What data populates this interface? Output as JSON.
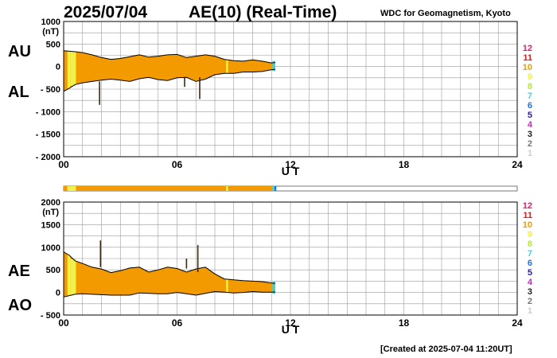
{
  "header": {
    "date": "2025/07/04",
    "title": "AE(10) (Real-Time)",
    "credit": "WDC for Geomagnetism, Kyoto",
    "created": "[Created at 2025-07-04 11:20UT]"
  },
  "legend": [
    {
      "label": "12",
      "color": "#e8196a"
    },
    {
      "label": "11",
      "color": "#e01c1c"
    },
    {
      "label": "10",
      "color": "#f39a00"
    },
    {
      "label": "9",
      "color": "#f1f148"
    },
    {
      "label": "8",
      "color": "#b8e830"
    },
    {
      "label": "7",
      "color": "#34d6e6"
    },
    {
      "label": "6",
      "color": "#1f73e0"
    },
    {
      "label": "5",
      "color": "#2d1aa8"
    },
    {
      "label": "4",
      "color": "#cc22cc"
    },
    {
      "label": "3",
      "color": "#222222"
    },
    {
      "label": "2",
      "color": "#777777"
    },
    {
      "label": "1",
      "color": "#cfcfcf"
    }
  ],
  "chart_data": [
    {
      "type": "area",
      "name": "AU/AL",
      "unit": "(nT)",
      "labels": [
        "AU",
        "AL"
      ],
      "xlabel": "U T",
      "xticks": [
        "00",
        "06",
        "12",
        "18",
        "24"
      ],
      "xlim": [
        0,
        24
      ],
      "ylim": [
        -2000,
        1000
      ],
      "yticks": [
        -2000,
        -1500,
        -1000,
        -500,
        0,
        500,
        1000
      ],
      "ytick_labels": [
        "- 2000",
        "- 1500",
        "- 1000",
        "- 500",
        "0",
        "500",
        "1000"
      ],
      "grid": true,
      "series": [
        {
          "key": "AU",
          "x": [
            0,
            0.3,
            0.6,
            1,
            1.5,
            2,
            2.5,
            3,
            3.5,
            4,
            4.5,
            5,
            5.5,
            6,
            6.5,
            7,
            7.5,
            8,
            8.5,
            9,
            9.5,
            10,
            10.5,
            11,
            11.2
          ],
          "y": [
            350,
            340,
            330,
            310,
            260,
            200,
            160,
            180,
            220,
            260,
            210,
            230,
            260,
            270,
            200,
            230,
            260,
            230,
            160,
            130,
            120,
            150,
            120,
            80,
            90
          ]
        },
        {
          "key": "AL",
          "x": [
            0,
            0.3,
            0.6,
            1,
            1.5,
            2,
            2.5,
            3,
            3.5,
            4,
            4.5,
            5,
            5.5,
            6,
            6.5,
            7,
            7.5,
            8,
            8.5,
            9,
            9.5,
            10,
            10.5,
            11,
            11.2
          ],
          "y": [
            -550,
            -480,
            -400,
            -360,
            -330,
            -300,
            -280,
            -300,
            -330,
            -270,
            -240,
            -290,
            -310,
            -250,
            -240,
            -330,
            -280,
            -180,
            -150,
            -150,
            -120,
            -120,
            -110,
            -70,
            -60
          ]
        }
      ],
      "spikes": [
        {
          "x": 1.9,
          "y": -850
        },
        {
          "x": 6.4,
          "y": -450
        },
        {
          "x": 7.2,
          "y": -720
        }
      ]
    },
    {
      "type": "area",
      "name": "AE/AO",
      "unit": "(nT)",
      "labels": [
        "AE",
        "AO"
      ],
      "xlabel": "U T",
      "xticks": [
        "00",
        "06",
        "12",
        "18",
        "24"
      ],
      "xlim": [
        0,
        24
      ],
      "ylim": [
        -500,
        2000
      ],
      "yticks": [
        -500,
        0,
        500,
        1000,
        1500,
        2000
      ],
      "ytick_labels": [
        "- 500",
        "0",
        "500",
        "1000",
        "1500",
        "2000"
      ],
      "grid": true,
      "series": [
        {
          "key": "AE",
          "x": [
            0,
            0.3,
            0.6,
            1,
            1.5,
            2,
            2.5,
            3,
            3.5,
            4,
            4.5,
            5,
            5.5,
            6,
            6.5,
            7,
            7.5,
            8,
            8.5,
            9,
            9.5,
            10,
            10.5,
            11,
            11.2
          ],
          "y": [
            900,
            820,
            700,
            640,
            560,
            520,
            440,
            480,
            540,
            560,
            450,
            500,
            560,
            530,
            450,
            520,
            560,
            410,
            300,
            280,
            260,
            250,
            240,
            210,
            200
          ]
        },
        {
          "key": "AO",
          "x": [
            0,
            0.3,
            0.6,
            1,
            1.5,
            2,
            2.5,
            3,
            3.5,
            4,
            4.5,
            5,
            5.5,
            6,
            6.5,
            7,
            7.5,
            8,
            8.5,
            9,
            9.5,
            10,
            10.5,
            11,
            11.2
          ],
          "y": [
            -100,
            -70,
            -40,
            -30,
            -40,
            -50,
            -60,
            -60,
            -60,
            -10,
            -20,
            -30,
            -30,
            0,
            -30,
            -60,
            -20,
            20,
            5,
            -10,
            0,
            20,
            5,
            5,
            10
          ]
        }
      ],
      "spikes": [
        {
          "x": 1.95,
          "y": 1150
        },
        {
          "x": 6.5,
          "y": 750
        },
        {
          "x": 7.1,
          "y": 1050
        }
      ]
    }
  ],
  "activity_bar": {
    "segments": [
      {
        "from": 0,
        "to": 0.2,
        "color": "#f39a00"
      },
      {
        "from": 0.2,
        "to": 0.35,
        "color": "#f1f148"
      },
      {
        "from": 0.35,
        "to": 0.65,
        "color": "#f1f148"
      },
      {
        "from": 0.65,
        "to": 8.6,
        "color": "#f39a00"
      },
      {
        "from": 8.6,
        "to": 8.7,
        "color": "#f1f148"
      },
      {
        "from": 8.7,
        "to": 11.05,
        "color": "#f39a00"
      },
      {
        "from": 11.05,
        "to": 11.15,
        "color": "#34d6e6"
      },
      {
        "from": 11.15,
        "to": 11.25,
        "color": "#1f73e0"
      }
    ]
  },
  "colors": {
    "fill": "#f39a00",
    "highlight": "#f1f148",
    "line": "#000000",
    "grid": "#9a9a9a"
  }
}
